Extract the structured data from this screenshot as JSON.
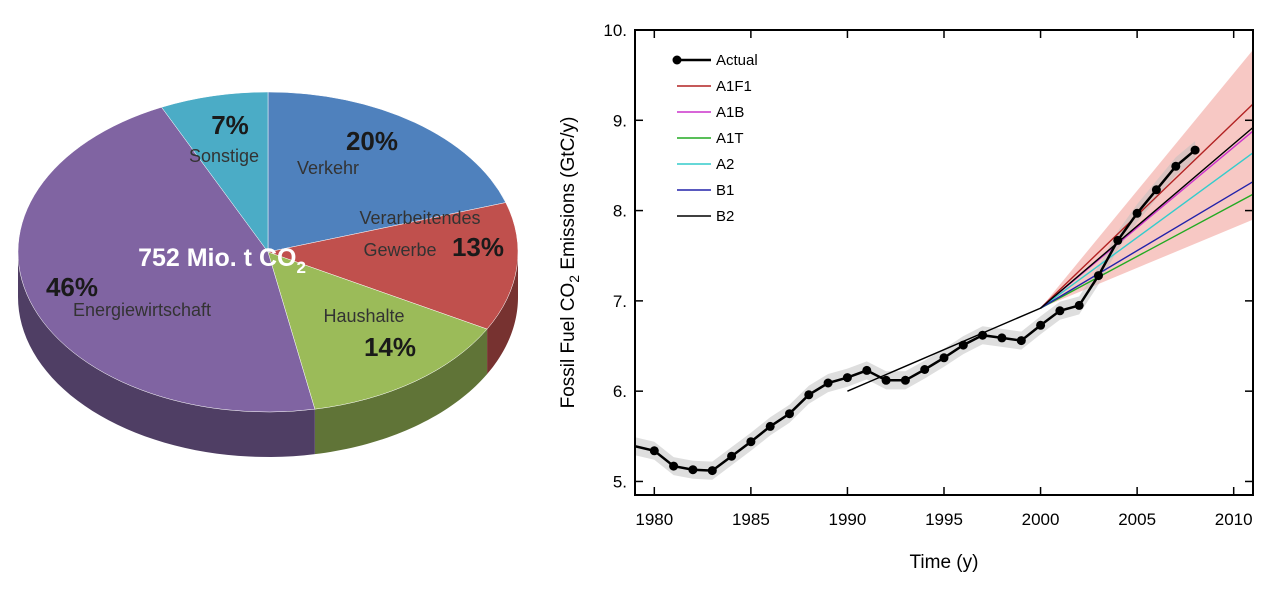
{
  "chart_data": [
    {
      "type": "pie",
      "center_label": {
        "text": "752 Mio. t CO",
        "subscript": "2"
      },
      "slices": [
        {
          "name": "Verkehr",
          "percent": "20%",
          "value": 20,
          "color": "#4f81bd"
        },
        {
          "name": "Verarbeitendes Gewerbe",
          "name_lines": [
            "Verarbeitendes",
            "Gewerbe"
          ],
          "percent": "13%",
          "value": 13,
          "color": "#c0504d"
        },
        {
          "name": "Haushalte",
          "percent": "14%",
          "value": 14,
          "color": "#9bbb59"
        },
        {
          "name": "Energiewirtschaft",
          "percent": "46%",
          "value": 46,
          "color": "#8064a2"
        },
        {
          "name": "Sonstige",
          "percent": "7%",
          "value": 7,
          "color": "#4bacc6"
        }
      ]
    },
    {
      "type": "line",
      "xlabel": "Time (y)",
      "ylabel": {
        "text": "Fossil Fuel CO",
        "subscript": "2",
        "suffix": " Emissions (GtC/y)"
      },
      "xlim": [
        1979,
        2011
      ],
      "ylim": [
        4.85,
        10.0
      ],
      "xticks": [
        1980,
        1985,
        1990,
        1995,
        2000,
        2005,
        2010
      ],
      "yticks": [
        5,
        6,
        7,
        8,
        9,
        10
      ],
      "ytick_labels": [
        "5.",
        "6.",
        "7.",
        "8.",
        "9.",
        "10."
      ],
      "legend_position": "top-left",
      "series": [
        {
          "name": "Actual",
          "color": "#000000",
          "marker": "circle",
          "x": [
            1979,
            1980,
            1981,
            1982,
            1983,
            1984,
            1985,
            1986,
            1987,
            1988,
            1989,
            1990,
            1991,
            1992,
            1993,
            1994,
            1995,
            1996,
            1997,
            1998,
            1999,
            2000,
            2001,
            2002,
            2003,
            2004,
            2005,
            2006,
            2007,
            2008
          ],
          "y": [
            5.39,
            5.34,
            5.17,
            5.13,
            5.12,
            5.28,
            5.44,
            5.61,
            5.75,
            5.96,
            6.09,
            6.15,
            6.23,
            6.12,
            6.12,
            6.24,
            6.37,
            6.51,
            6.62,
            6.59,
            6.56,
            6.73,
            6.89,
            6.95,
            7.28,
            7.67,
            7.97,
            8.23,
            8.49,
            8.67
          ]
        },
        {
          "name": "A1F1",
          "color": "#b22222",
          "x": [
            2000,
            2011
          ],
          "y": [
            6.92,
            9.18
          ]
        },
        {
          "name": "A1B",
          "color": "#cc33cc",
          "x": [
            2000,
            2011
          ],
          "y": [
            6.92,
            8.88
          ]
        },
        {
          "name": "A1T",
          "color": "#22aa22",
          "x": [
            2000,
            2011
          ],
          "y": [
            6.92,
            8.18
          ]
        },
        {
          "name": "A2",
          "color": "#33cccc",
          "x": [
            2000,
            2011
          ],
          "y": [
            6.92,
            8.64
          ]
        },
        {
          "name": "B1",
          "color": "#2222aa",
          "x": [
            2000,
            2011
          ],
          "y": [
            6.92,
            8.32
          ]
        },
        {
          "name": "B2",
          "color": "#000000",
          "x": [
            1990,
            2000,
            2011
          ],
          "y": [
            6.0,
            6.92,
            8.92
          ]
        }
      ],
      "band_color": "#f4b6b0",
      "band": {
        "x": [
          2000,
          2011
        ],
        "low": [
          6.92,
          7.9
        ],
        "high": [
          6.92,
          9.78
        ]
      },
      "actual_uncertainty_color": "#bdbdbd"
    }
  ]
}
